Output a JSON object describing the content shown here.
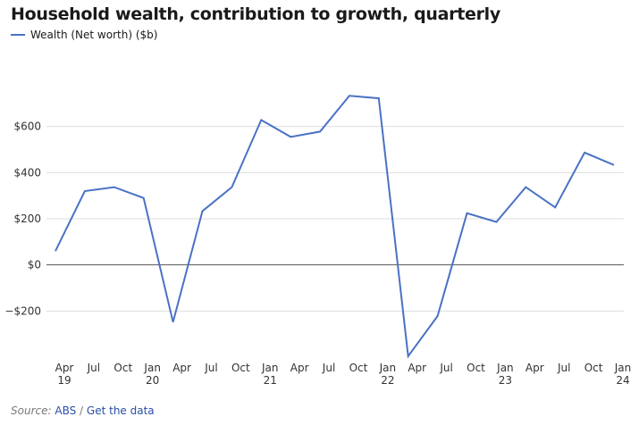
{
  "title": "Household wealth, contribution to growth, quarterly",
  "legend": {
    "label": "Wealth (Net worth) ($b)"
  },
  "colors": {
    "line": "#4a72c4",
    "grid": "#dddddd",
    "zero": "#555555"
  },
  "chart_data": {
    "type": "line",
    "title": "Household wealth, contribution to growth, quarterly",
    "series": [
      {
        "name": "Wealth (Net worth) ($b)",
        "values": [
          60,
          320,
          337,
          290,
          -248,
          233,
          337,
          628,
          555,
          578,
          733,
          722,
          -396,
          -222,
          224,
          186,
          337,
          249,
          487,
          433
        ]
      }
    ],
    "x": [
      "Apr 19",
      "Jul 19",
      "Oct 19",
      "Jan 20",
      "Apr 20",
      "Jul 20",
      "Oct 20",
      "Jan 21",
      "Apr 21",
      "Jul 21",
      "Oct 21",
      "Jan 22",
      "Apr 22",
      "Jul 22",
      "Oct 22",
      "Jan 23",
      "Apr 23",
      "Jul 23",
      "Oct 23",
      "Jan 24"
    ],
    "tick_labels": [
      {
        "top": "Apr",
        "bottom": "19"
      },
      {
        "top": "Jul",
        "bottom": ""
      },
      {
        "top": "Oct",
        "bottom": ""
      },
      {
        "top": "Jan",
        "bottom": "20"
      },
      {
        "top": "Apr",
        "bottom": ""
      },
      {
        "top": "Jul",
        "bottom": ""
      },
      {
        "top": "Oct",
        "bottom": ""
      },
      {
        "top": "Jan",
        "bottom": "21"
      },
      {
        "top": "Apr",
        "bottom": ""
      },
      {
        "top": "Jul",
        "bottom": ""
      },
      {
        "top": "Oct",
        "bottom": ""
      },
      {
        "top": "Jan",
        "bottom": "22"
      },
      {
        "top": "Apr",
        "bottom": ""
      },
      {
        "top": "Jul",
        "bottom": ""
      },
      {
        "top": "Oct",
        "bottom": ""
      },
      {
        "top": "Jan",
        "bottom": "23"
      },
      {
        "top": "Apr",
        "bottom": ""
      },
      {
        "top": "Jul",
        "bottom": ""
      },
      {
        "top": "Oct",
        "bottom": ""
      },
      {
        "top": "Jan",
        "bottom": "24"
      }
    ],
    "y_ticks": [
      {
        "value": 600,
        "label": "$600"
      },
      {
        "value": 400,
        "label": "$400"
      },
      {
        "value": 200,
        "label": "$200"
      },
      {
        "value": 0,
        "label": "$0"
      },
      {
        "value": -200,
        "label": "−$200"
      }
    ],
    "ylim": [
      -400,
      800
    ],
    "xlabel": "",
    "ylabel": "",
    "grid": true,
    "legend_position": "top-left"
  },
  "footer": {
    "source_label": "Source:",
    "source_link": "ABS",
    "separator": "/",
    "data_link": "Get the data"
  }
}
